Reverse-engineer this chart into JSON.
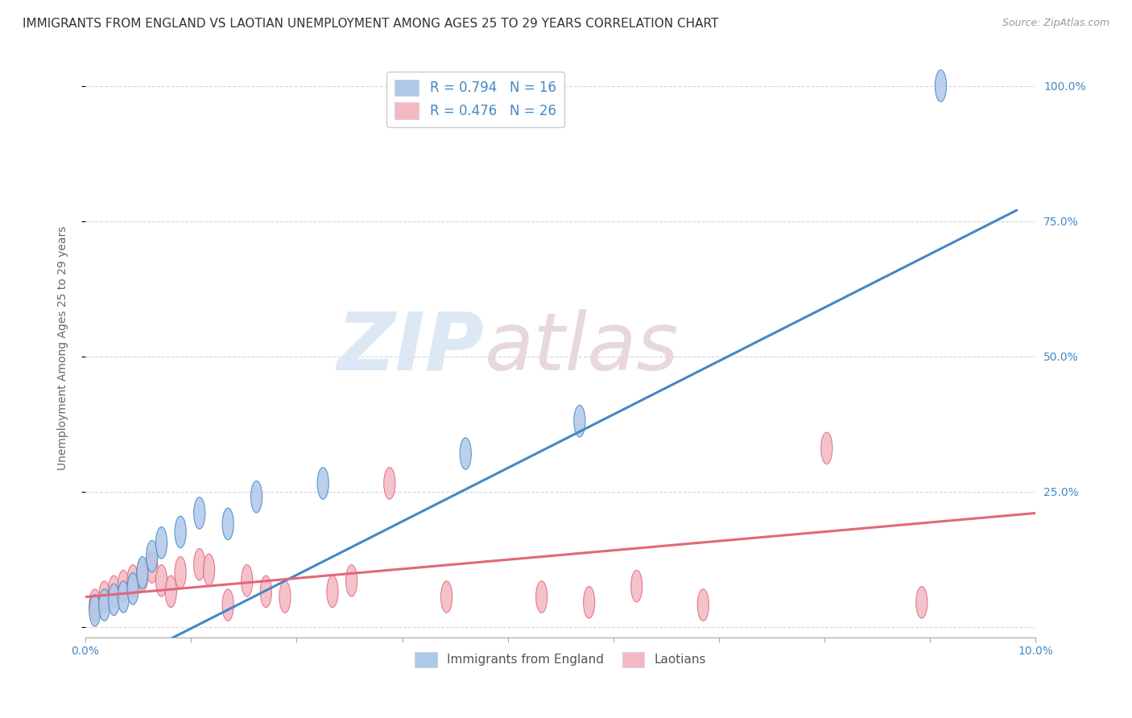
{
  "title": "IMMIGRANTS FROM ENGLAND VS LAOTIAN UNEMPLOYMENT AMONG AGES 25 TO 29 YEARS CORRELATION CHART",
  "source": "Source: ZipAtlas.com",
  "ylabel": "Unemployment Among Ages 25 to 29 years",
  "xlim": [
    0.0,
    0.1
  ],
  "ylim": [
    -0.02,
    1.05
  ],
  "watermark_text": "ZIP",
  "watermark_text2": "atlas",
  "legend_label1": "Immigrants from England",
  "legend_label2": "Laotians",
  "legend_r1": "R = 0.794",
  "legend_n1": "N = 16",
  "legend_r2": "R = 0.476",
  "legend_n2": "N = 26",
  "blue_scatter_x": [
    0.001,
    0.002,
    0.003,
    0.004,
    0.005,
    0.006,
    0.007,
    0.008,
    0.01,
    0.012,
    0.015,
    0.018,
    0.025,
    0.04,
    0.052,
    0.09
  ],
  "blue_scatter_y": [
    0.03,
    0.04,
    0.05,
    0.055,
    0.07,
    0.1,
    0.13,
    0.155,
    0.175,
    0.21,
    0.19,
    0.24,
    0.265,
    0.32,
    0.38,
    1.0
  ],
  "pink_scatter_x": [
    0.001,
    0.002,
    0.003,
    0.004,
    0.005,
    0.006,
    0.007,
    0.008,
    0.009,
    0.01,
    0.012,
    0.013,
    0.015,
    0.017,
    0.019,
    0.021,
    0.026,
    0.028,
    0.032,
    0.038,
    0.048,
    0.053,
    0.058,
    0.065,
    0.078,
    0.088
  ],
  "pink_scatter_y": [
    0.04,
    0.055,
    0.065,
    0.075,
    0.085,
    0.095,
    0.11,
    0.085,
    0.065,
    0.1,
    0.115,
    0.105,
    0.04,
    0.085,
    0.065,
    0.055,
    0.065,
    0.085,
    0.265,
    0.055,
    0.055,
    0.045,
    0.075,
    0.04,
    0.33,
    0.045
  ],
  "blue_line_x": [
    -0.002,
    0.098
  ],
  "blue_line_y": [
    -0.12,
    0.77
  ],
  "pink_line_x": [
    0.0,
    0.1
  ],
  "pink_line_y": [
    0.055,
    0.21
  ],
  "blue_color": "#4488c4",
  "pink_color": "#e06878",
  "blue_scatter_color": "#aec8ea",
  "pink_scatter_color": "#f4b8c4",
  "grid_color": "#cccccc",
  "background_color": "#ffffff",
  "title_fontsize": 11,
  "axis_label_fontsize": 10,
  "tick_fontsize": 10,
  "right_tick_color": "#4488c4",
  "left_tick_color": "#aaaaaa"
}
